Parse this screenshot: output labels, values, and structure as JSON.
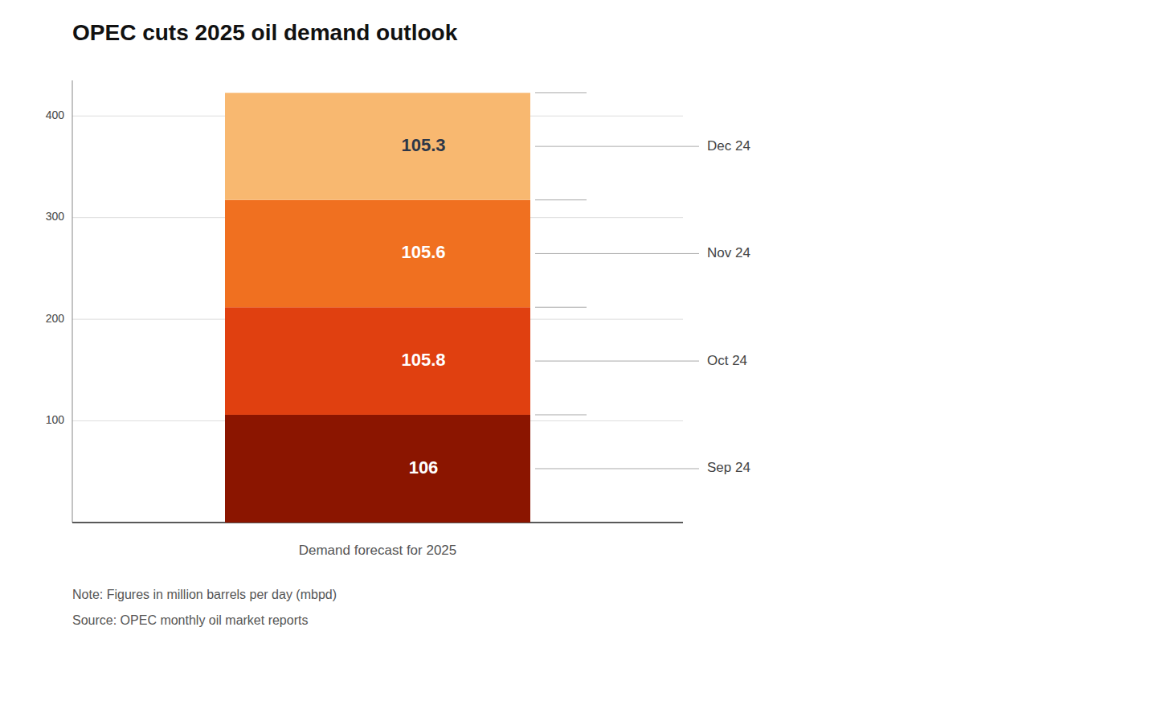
{
  "chart_data": {
    "type": "bar",
    "stacked": true,
    "title": "OPEC cuts 2025 oil demand outlook",
    "x_label": "Demand forecast for 2025",
    "annotations": [
      "Note: Figures in million barrels per day (mbpd)",
      "Source: OPEC monthly oil market reports"
    ],
    "categories": [
      null
    ],
    "series": [
      {
        "name": "Sep 24",
        "color": "#8B1500",
        "values": [
          106
        ]
      },
      {
        "name": "Oct 24",
        "color": "#E04010",
        "values": [
          105.8
        ]
      },
      {
        "name": "Nov 24",
        "color": "#F07020",
        "values": [
          105.6
        ]
      },
      {
        "name": "Dec 24",
        "color": "#F8B870",
        "values": [
          105.3
        ]
      }
    ],
    "ylim": [
      0,
      435
    ],
    "yticks": [
      100,
      200,
      300,
      400
    ],
    "grid": true,
    "data_labels": true,
    "tick_labels": "y"
  }
}
